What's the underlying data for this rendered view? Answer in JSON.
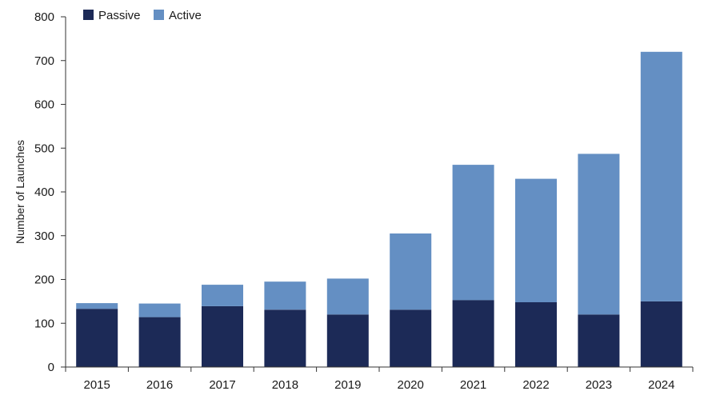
{
  "chart_data": {
    "type": "bar",
    "stacked": true,
    "title": "",
    "xlabel": "",
    "ylabel": "Number of Launches",
    "categories": [
      "2015",
      "2016",
      "2017",
      "2018",
      "2019",
      "2020",
      "2021",
      "2022",
      "2023",
      "2024"
    ],
    "series": [
      {
        "name": "Passive",
        "color": "#1c2a57",
        "values": [
          133,
          114,
          139,
          131,
          120,
          131,
          153,
          148,
          120,
          150
        ]
      },
      {
        "name": "Active",
        "color": "#648fc3",
        "values": [
          13,
          31,
          49,
          64,
          82,
          174,
          309,
          282,
          367,
          570
        ]
      }
    ],
    "ylim": [
      0,
      800
    ],
    "yticks": [
      0,
      100,
      200,
      300,
      400,
      500,
      600,
      700,
      800
    ],
    "grid": false,
    "legend_position": "top-left"
  }
}
